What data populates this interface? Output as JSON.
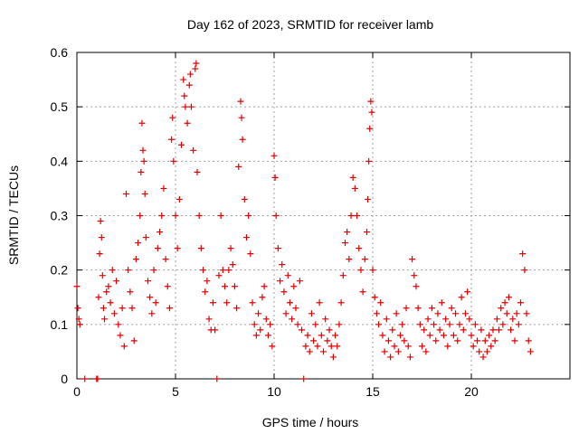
{
  "chart_data": {
    "type": "scatter",
    "title": "Day 162 of 2023, SRMTID for receiver lamb",
    "xlabel": "GPS time / hours",
    "ylabel": "SRMTID / TECUs",
    "xlim": [
      0,
      25
    ],
    "ylim": [
      0,
      0.6
    ],
    "xticks": [
      0,
      5,
      10,
      15,
      20
    ],
    "yticks": [
      0,
      0.1,
      0.2,
      0.3,
      0.4,
      0.5,
      0.6
    ],
    "grid": true,
    "marker": "plus",
    "series_color": "#e00000",
    "series": [
      {
        "name": "SRMTID",
        "points": [
          [
            0.0,
            0.17
          ],
          [
            0.05,
            0.13
          ],
          [
            0.1,
            0.11
          ],
          [
            0.15,
            0.1
          ],
          [
            0.4,
            0.0
          ],
          [
            1.0,
            0.0
          ],
          [
            1.05,
            0.0
          ],
          [
            1.1,
            0.15
          ],
          [
            1.15,
            0.23
          ],
          [
            1.2,
            0.29
          ],
          [
            1.25,
            0.26
          ],
          [
            1.3,
            0.19
          ],
          [
            1.35,
            0.13
          ],
          [
            1.4,
            0.11
          ],
          [
            1.5,
            0.16
          ],
          [
            1.6,
            0.17
          ],
          [
            1.7,
            0.14
          ],
          [
            1.8,
            0.2
          ],
          [
            1.9,
            0.12
          ],
          [
            2.0,
            0.18
          ],
          [
            2.1,
            0.1
          ],
          [
            2.2,
            0.08
          ],
          [
            2.3,
            0.13
          ],
          [
            2.4,
            0.06
          ],
          [
            2.5,
            0.34
          ],
          [
            2.6,
            0.2
          ],
          [
            2.7,
            0.16
          ],
          [
            2.8,
            0.13
          ],
          [
            2.9,
            0.07
          ],
          [
            3.0,
            0.22
          ],
          [
            3.1,
            0.25
          ],
          [
            3.2,
            0.3
          ],
          [
            3.25,
            0.38
          ],
          [
            3.3,
            0.47
          ],
          [
            3.35,
            0.42
          ],
          [
            3.4,
            0.4
          ],
          [
            3.45,
            0.34
          ],
          [
            3.5,
            0.26
          ],
          [
            3.6,
            0.18
          ],
          [
            3.7,
            0.15
          ],
          [
            3.8,
            0.12
          ],
          [
            3.9,
            0.2
          ],
          [
            4.0,
            0.14
          ],
          [
            4.1,
            0.24
          ],
          [
            4.2,
            0.27
          ],
          [
            4.3,
            0.3
          ],
          [
            4.4,
            0.35
          ],
          [
            4.5,
            0.22
          ],
          [
            4.6,
            0.17
          ],
          [
            4.7,
            0.13
          ],
          [
            4.8,
            0.44
          ],
          [
            4.85,
            0.48
          ],
          [
            4.9,
            0.4
          ],
          [
            5.0,
            0.3
          ],
          [
            5.1,
            0.24
          ],
          [
            5.2,
            0.33
          ],
          [
            5.3,
            0.43
          ],
          [
            5.4,
            0.55
          ],
          [
            5.45,
            0.52
          ],
          [
            5.5,
            0.5
          ],
          [
            5.6,
            0.47
          ],
          [
            5.7,
            0.54
          ],
          [
            5.75,
            0.56
          ],
          [
            5.8,
            0.5
          ],
          [
            5.9,
            0.42
          ],
          [
            6.0,
            0.57
          ],
          [
            6.05,
            0.58
          ],
          [
            6.1,
            0.38
          ],
          [
            6.2,
            0.3
          ],
          [
            6.3,
            0.24
          ],
          [
            6.4,
            0.2
          ],
          [
            6.5,
            0.16
          ],
          [
            6.6,
            0.18
          ],
          [
            6.7,
            0.11
          ],
          [
            6.8,
            0.09
          ],
          [
            6.9,
            0.14
          ],
          [
            7.0,
            0.09
          ],
          [
            7.1,
            0.0
          ],
          [
            7.2,
            0.19
          ],
          [
            7.3,
            0.3
          ],
          [
            7.4,
            0.2
          ],
          [
            7.5,
            0.17
          ],
          [
            7.6,
            0.14
          ],
          [
            7.7,
            0.2
          ],
          [
            7.8,
            0.24
          ],
          [
            7.9,
            0.21
          ],
          [
            8.0,
            0.17
          ],
          [
            8.1,
            0.13
          ],
          [
            8.2,
            0.39
          ],
          [
            8.3,
            0.51
          ],
          [
            8.35,
            0.48
          ],
          [
            8.4,
            0.44
          ],
          [
            8.5,
            0.33
          ],
          [
            8.6,
            0.26
          ],
          [
            8.7,
            0.3
          ],
          [
            8.8,
            0.23
          ],
          [
            8.9,
            0.14
          ],
          [
            9.0,
            0.1
          ],
          [
            9.1,
            0.08
          ],
          [
            9.2,
            0.12
          ],
          [
            9.3,
            0.09
          ],
          [
            9.4,
            0.15
          ],
          [
            9.5,
            0.17
          ],
          [
            9.6,
            0.11
          ],
          [
            9.7,
            0.08
          ],
          [
            9.8,
            0.1
          ],
          [
            9.9,
            0.06
          ],
          [
            10.0,
            0.41
          ],
          [
            10.05,
            0.37
          ],
          [
            10.1,
            0.3
          ],
          [
            10.2,
            0.24
          ],
          [
            10.3,
            0.18
          ],
          [
            10.4,
            0.21
          ],
          [
            10.5,
            0.16
          ],
          [
            10.6,
            0.12
          ],
          [
            10.7,
            0.19
          ],
          [
            10.8,
            0.14
          ],
          [
            10.9,
            0.11
          ],
          [
            11.0,
            0.17
          ],
          [
            11.1,
            0.13
          ],
          [
            11.2,
            0.1
          ],
          [
            11.3,
            0.18
          ],
          [
            11.4,
            0.09
          ],
          [
            11.5,
            0.0
          ],
          [
            11.6,
            0.06
          ],
          [
            11.7,
            0.08
          ],
          [
            11.8,
            0.05
          ],
          [
            11.9,
            0.12
          ],
          [
            12.0,
            0.07
          ],
          [
            12.1,
            0.1
          ],
          [
            12.2,
            0.06
          ],
          [
            12.3,
            0.14
          ],
          [
            12.4,
            0.08
          ],
          [
            12.5,
            0.05
          ],
          [
            12.6,
            0.11
          ],
          [
            12.7,
            0.07
          ],
          [
            12.8,
            0.09
          ],
          [
            12.9,
            0.06
          ],
          [
            13.0,
            0.04
          ],
          [
            13.1,
            0.08
          ],
          [
            13.2,
            0.06
          ],
          [
            13.3,
            0.1
          ],
          [
            13.4,
            0.14
          ],
          [
            13.5,
            0.19
          ],
          [
            13.6,
            0.25
          ],
          [
            13.7,
            0.27
          ],
          [
            13.8,
            0.22
          ],
          [
            13.9,
            0.3
          ],
          [
            14.0,
            0.37
          ],
          [
            14.1,
            0.35
          ],
          [
            14.2,
            0.3
          ],
          [
            14.3,
            0.24
          ],
          [
            14.4,
            0.2
          ],
          [
            14.5,
            0.16
          ],
          [
            14.6,
            0.22
          ],
          [
            14.7,
            0.27
          ],
          [
            14.75,
            0.33
          ],
          [
            14.8,
            0.4
          ],
          [
            14.85,
            0.46
          ],
          [
            14.9,
            0.51
          ],
          [
            14.95,
            0.49
          ],
          [
            15.0,
            0.2
          ],
          [
            15.1,
            0.15
          ],
          [
            15.2,
            0.12
          ],
          [
            15.3,
            0.1
          ],
          [
            15.4,
            0.14
          ],
          [
            15.5,
            0.08
          ],
          [
            15.6,
            0.05
          ],
          [
            15.7,
            0.11
          ],
          [
            15.8,
            0.07
          ],
          [
            15.9,
            0.04
          ],
          [
            16.0,
            0.09
          ],
          [
            16.1,
            0.06
          ],
          [
            16.2,
            0.12
          ],
          [
            16.3,
            0.05
          ],
          [
            16.4,
            0.08
          ],
          [
            16.5,
            0.1
          ],
          [
            16.6,
            0.07
          ],
          [
            16.7,
            0.13
          ],
          [
            16.8,
            0.06
          ],
          [
            16.9,
            0.04
          ],
          [
            17.0,
            0.22
          ],
          [
            17.1,
            0.19
          ],
          [
            17.2,
            0.17
          ],
          [
            17.3,
            0.13
          ],
          [
            17.4,
            0.1
          ],
          [
            17.5,
            0.06
          ],
          [
            17.6,
            0.09
          ],
          [
            17.7,
            0.05
          ],
          [
            17.8,
            0.11
          ],
          [
            17.9,
            0.08
          ],
          [
            18.0,
            0.13
          ],
          [
            18.1,
            0.1
          ],
          [
            18.2,
            0.07
          ],
          [
            18.3,
            0.12
          ],
          [
            18.4,
            0.09
          ],
          [
            18.5,
            0.14
          ],
          [
            18.6,
            0.08
          ],
          [
            18.7,
            0.11
          ],
          [
            18.8,
            0.06
          ],
          [
            18.9,
            0.1
          ],
          [
            19.0,
            0.13
          ],
          [
            19.1,
            0.08
          ],
          [
            19.2,
            0.12
          ],
          [
            19.3,
            0.07
          ],
          [
            19.4,
            0.1
          ],
          [
            19.5,
            0.15
          ],
          [
            19.6,
            0.09
          ],
          [
            19.7,
            0.12
          ],
          [
            19.8,
            0.16
          ],
          [
            19.9,
            0.11
          ],
          [
            20.0,
            0.08
          ],
          [
            20.1,
            0.06
          ],
          [
            20.2,
            0.1
          ],
          [
            20.3,
            0.07
          ],
          [
            20.4,
            0.05
          ],
          [
            20.5,
            0.09
          ],
          [
            20.6,
            0.04
          ],
          [
            20.7,
            0.07
          ],
          [
            20.8,
            0.05
          ],
          [
            20.9,
            0.08
          ],
          [
            21.0,
            0.06
          ],
          [
            21.1,
            0.09
          ],
          [
            21.2,
            0.07
          ],
          [
            21.3,
            0.11
          ],
          [
            21.4,
            0.09
          ],
          [
            21.5,
            0.13
          ],
          [
            21.6,
            0.1
          ],
          [
            21.7,
            0.14
          ],
          [
            21.8,
            0.12
          ],
          [
            21.9,
            0.15
          ],
          [
            22.0,
            0.09
          ],
          [
            22.1,
            0.11
          ],
          [
            22.2,
            0.07
          ],
          [
            22.3,
            0.12
          ],
          [
            22.4,
            0.1
          ],
          [
            22.5,
            0.14
          ],
          [
            22.6,
            0.23
          ],
          [
            22.7,
            0.2
          ],
          [
            22.8,
            0.12
          ],
          [
            22.9,
            0.07
          ],
          [
            23.0,
            0.05
          ]
        ]
      }
    ]
  }
}
